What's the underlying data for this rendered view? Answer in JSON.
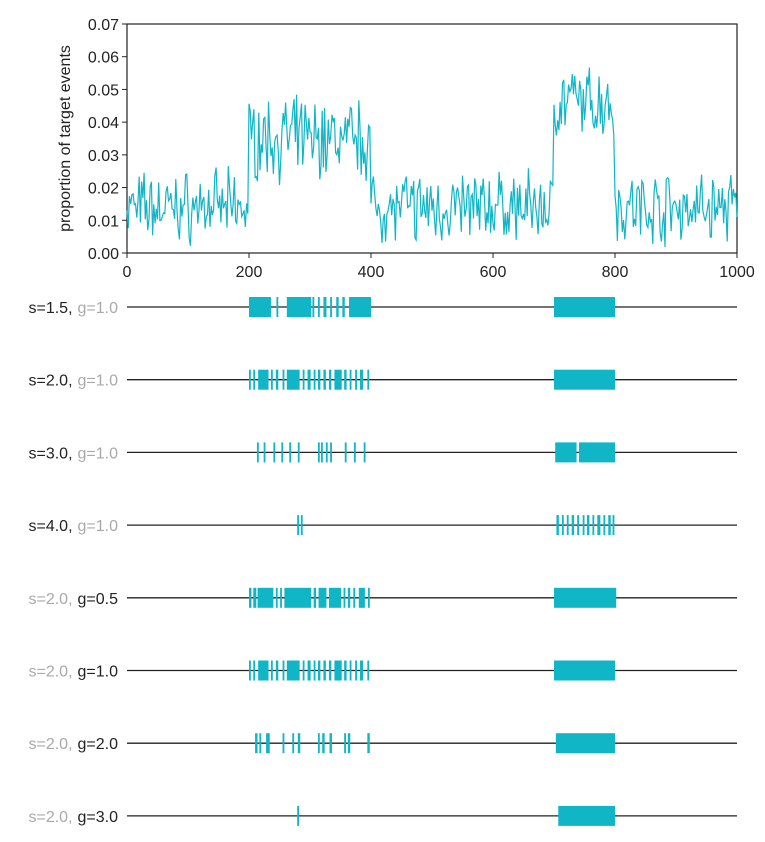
{
  "colors": {
    "accent": "#10b5c6",
    "axis": "#222222",
    "muted": "#a9a9a9",
    "strong": "#222222"
  },
  "chart_data": [
    {
      "type": "line",
      "ylabel": "proportion of target events",
      "xlabel": "",
      "xlim": [
        0,
        1000
      ],
      "ylim": [
        0,
        0.07
      ],
      "xticks": [
        "0",
        "200",
        "400",
        "600",
        "800",
        "1000"
      ],
      "yticks": [
        "0.00",
        "0.01",
        "0.02",
        "0.03",
        "0.04",
        "0.05",
        "0.06",
        "0.07"
      ],
      "segments": [
        {
          "x_start": 0,
          "x_end": 200,
          "mean": 0.014,
          "spread": 0.008
        },
        {
          "x_start": 200,
          "x_end": 400,
          "mean": 0.035,
          "spread": 0.009
        },
        {
          "x_start": 400,
          "x_end": 700,
          "mean": 0.014,
          "spread": 0.008
        },
        {
          "x_start": 700,
          "x_end": 800,
          "mean": 0.046,
          "spread": 0.008
        },
        {
          "x_start": 800,
          "x_end": 1000,
          "mean": 0.014,
          "spread": 0.008
        }
      ]
    },
    {
      "type": "event-raster",
      "xlim": [
        0,
        1000
      ],
      "rows": [
        {
          "s_label": "s=1.5,",
          "g_label": "g=1.0",
          "emphasis": "s",
          "bursts": [
            [
              200,
              236
            ],
            [
              245,
              248
            ],
            [
              262,
              302
            ],
            [
              304,
              307
            ],
            [
              313,
              316
            ],
            [
              322,
              327
            ],
            [
              333,
              336
            ],
            [
              343,
              347
            ],
            [
              353,
              357
            ],
            [
              364,
              400
            ],
            [
              700,
              800
            ]
          ]
        },
        {
          "s_label": "s=2.0,",
          "g_label": "g=1.0",
          "emphasis": "s",
          "bursts": [
            [
              200,
              203
            ],
            [
              207,
              210
            ],
            [
              215,
              232
            ],
            [
              236,
              239
            ],
            [
              244,
              248
            ],
            [
              255,
              258
            ],
            [
              262,
              283
            ],
            [
              288,
              291
            ],
            [
              296,
              301
            ],
            [
              306,
              309
            ],
            [
              313,
              317
            ],
            [
              322,
              326
            ],
            [
              331,
              335
            ],
            [
              340,
              352
            ],
            [
              356,
              360
            ],
            [
              365,
              368
            ],
            [
              374,
              377
            ],
            [
              382,
              387
            ],
            [
              394,
              397
            ],
            [
              700,
              800
            ]
          ]
        },
        {
          "s_label": "s=3.0,",
          "g_label": "g=1.0",
          "emphasis": "s",
          "bursts": [
            [
              213,
              216
            ],
            [
              224,
              227
            ],
            [
              240,
              243
            ],
            [
              253,
              256
            ],
            [
              266,
              269
            ],
            [
              280,
              283
            ],
            [
              313,
              316
            ],
            [
              318,
              321
            ],
            [
              326,
              329
            ],
            [
              333,
              336
            ],
            [
              357,
              360
            ],
            [
              372,
              375
            ],
            [
              388,
              391
            ],
            [
              702,
              737
            ],
            [
              741,
              800
            ]
          ]
        },
        {
          "s_label": "s=4.0,",
          "g_label": "g=1.0",
          "emphasis": "s",
          "bursts": [
            [
              279,
              282
            ],
            [
              285,
              288
            ],
            [
              704,
              708
            ],
            [
              713,
              716
            ],
            [
              721,
              724
            ],
            [
              729,
              733
            ],
            [
              738,
              741
            ],
            [
              747,
              750
            ],
            [
              754,
              758
            ],
            [
              763,
              766
            ],
            [
              771,
              776
            ],
            [
              781,
              784
            ],
            [
              789,
              793
            ],
            [
              796,
              799
            ]
          ]
        },
        {
          "s_label": "s=2.0,",
          "g_label": "g=0.5",
          "emphasis": "g",
          "bursts": [
            [
              200,
              204
            ],
            [
              207,
              212
            ],
            [
              214,
              240
            ],
            [
              244,
              247
            ],
            [
              251,
              254
            ],
            [
              258,
              302
            ],
            [
              306,
              310
            ],
            [
              314,
              327
            ],
            [
              331,
              351
            ],
            [
              355,
              358
            ],
            [
              362,
              366
            ],
            [
              371,
              374
            ],
            [
              380,
              390
            ],
            [
              395,
              398
            ],
            [
              700,
              802
            ]
          ]
        },
        {
          "s_label": "s=2.0,",
          "g_label": "g=1.0",
          "emphasis": "g",
          "bursts": [
            [
              200,
              203
            ],
            [
              207,
              210
            ],
            [
              215,
              232
            ],
            [
              236,
              239
            ],
            [
              244,
              248
            ],
            [
              255,
              258
            ],
            [
              262,
              283
            ],
            [
              288,
              291
            ],
            [
              296,
              301
            ],
            [
              306,
              309
            ],
            [
              313,
              317
            ],
            [
              322,
              326
            ],
            [
              331,
              335
            ],
            [
              340,
              352
            ],
            [
              356,
              360
            ],
            [
              365,
              368
            ],
            [
              374,
              377
            ],
            [
              382,
              387
            ],
            [
              394,
              397
            ],
            [
              700,
              800
            ]
          ]
        },
        {
          "s_label": "s=2.0,",
          "g_label": "g=2.0",
          "emphasis": "g",
          "bursts": [
            [
              210,
              214
            ],
            [
              217,
              220
            ],
            [
              228,
              234
            ],
            [
              255,
              258
            ],
            [
              271,
              274
            ],
            [
              280,
              284
            ],
            [
              313,
              316
            ],
            [
              320,
              324
            ],
            [
              332,
              336
            ],
            [
              356,
              359
            ],
            [
              362,
              366
            ],
            [
              394,
              398
            ],
            [
              703,
              800
            ]
          ]
        },
        {
          "s_label": "s=2.0,",
          "g_label": "g=3.0",
          "emphasis": "g",
          "bursts": [
            [
              279,
              282
            ],
            [
              707,
              800
            ]
          ]
        }
      ]
    }
  ]
}
